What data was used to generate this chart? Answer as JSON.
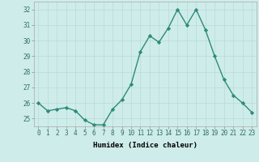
{
  "x": [
    0,
    1,
    2,
    3,
    4,
    5,
    6,
    7,
    8,
    9,
    10,
    11,
    12,
    13,
    14,
    15,
    16,
    17,
    18,
    19,
    20,
    21,
    22,
    23
  ],
  "y": [
    26.0,
    25.5,
    25.6,
    25.7,
    25.5,
    24.9,
    24.6,
    24.6,
    25.6,
    26.2,
    27.2,
    29.3,
    30.3,
    29.9,
    30.8,
    32.0,
    31.0,
    32.0,
    30.7,
    29.0,
    27.5,
    26.5,
    26.0,
    25.4
  ],
  "line_color": "#2d8b7a",
  "marker": "D",
  "marker_size": 2.2,
  "bg_color": "#ceecea",
  "grid_color": "#b8dbd8",
  "xlabel": "Humidex (Indice chaleur)",
  "ylim": [
    24.5,
    32.5
  ],
  "yticks": [
    25,
    26,
    27,
    28,
    29,
    30,
    31,
    32
  ],
  "xticks": [
    0,
    1,
    2,
    3,
    4,
    5,
    6,
    7,
    8,
    9,
    10,
    11,
    12,
    13,
    14,
    15,
    16,
    17,
    18,
    19,
    20,
    21,
    22,
    23
  ],
  "tick_fontsize": 5.5,
  "xlabel_fontsize": 6.5,
  "line_width": 1.0
}
